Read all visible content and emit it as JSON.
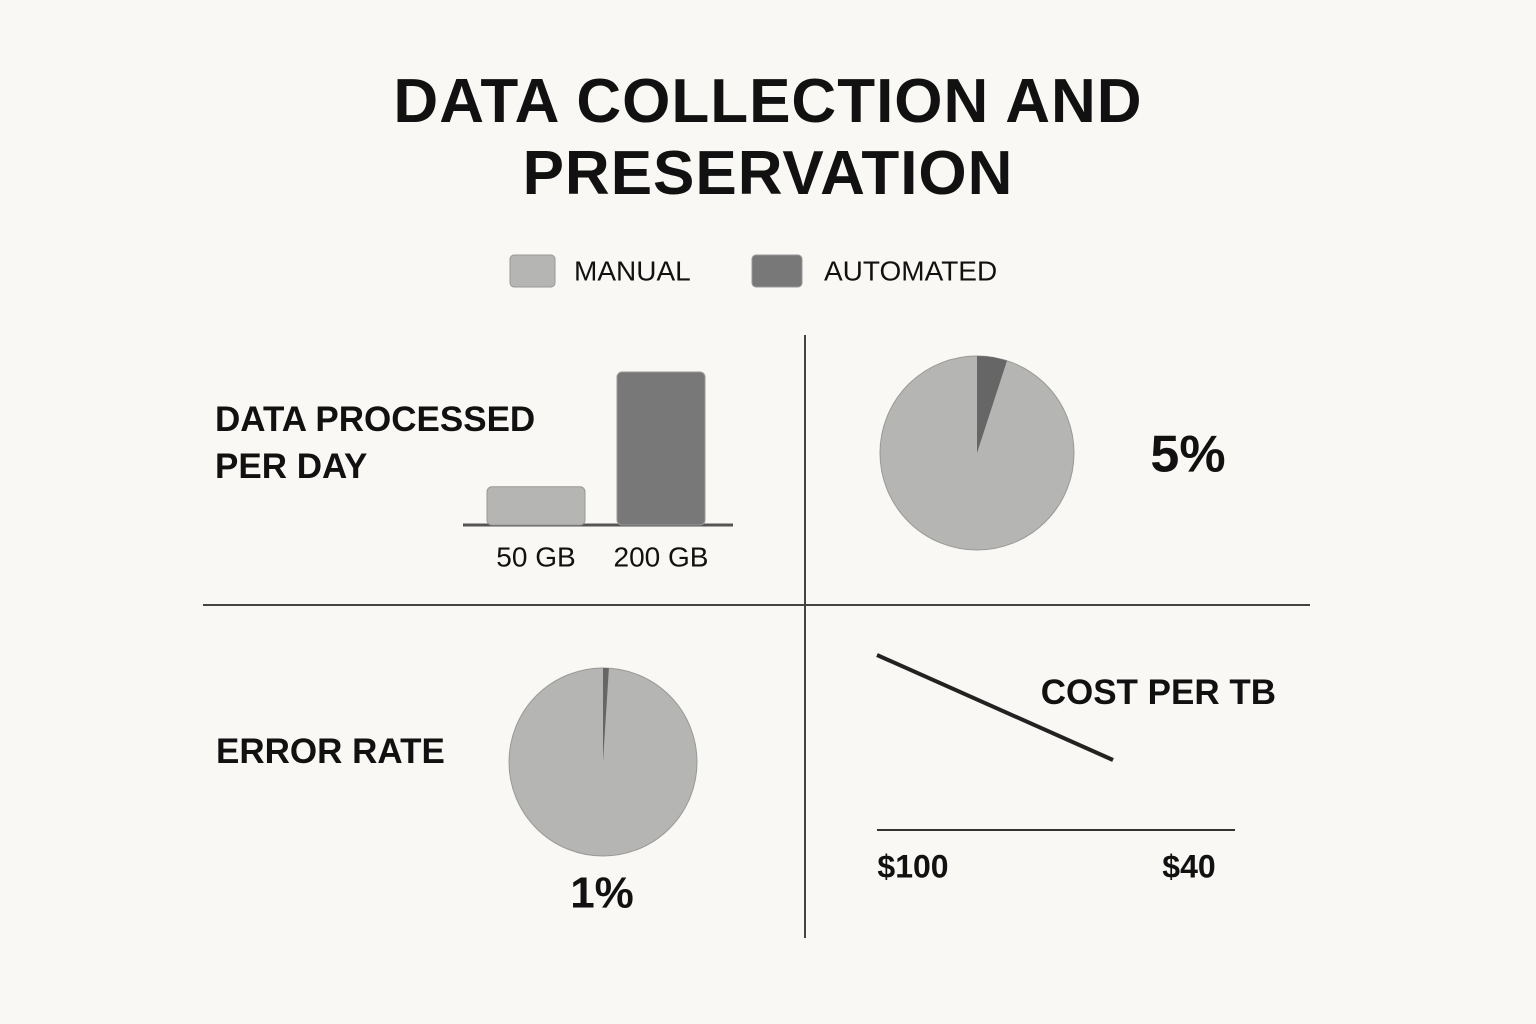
{
  "title": "DATA COLLECTION AND PRESERVATION",
  "legend": [
    {
      "name": "MANUAL",
      "color": "#b5b5b3"
    },
    {
      "name": "AUTOMATED",
      "color": "#787878"
    }
  ],
  "chart_data": [
    {
      "type": "bar",
      "title": "DATA PROCESSED PER DAY",
      "values": [
        50,
        200
      ],
      "value_labels": [
        "50 GB",
        "200 GB"
      ],
      "colors": [
        "#b5b5b3",
        "#787878"
      ]
    },
    {
      "type": "pie",
      "values": [
        5
      ],
      "value_labels": [
        "5%"
      ],
      "colors": [
        "#b5b5b3",
        "#666666"
      ]
    },
    {
      "type": "pie",
      "title": "ERROR RATE",
      "values": [
        1
      ],
      "value_labels": [
        "1%"
      ],
      "colors": [
        "#b5b5b3",
        "#666666"
      ]
    },
    {
      "type": "line",
      "title": "COST PER TB",
      "values": [
        100,
        40
      ],
      "value_labels": [
        "$100",
        "$40"
      ],
      "color": "#222222"
    }
  ]
}
